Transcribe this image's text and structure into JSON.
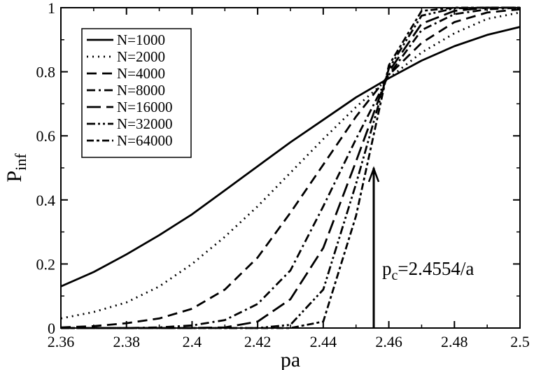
{
  "chart_data": {
    "type": "line",
    "xlabel": "pa",
    "ylabel_main": "P",
    "ylabel_sub": "inf",
    "xlim": [
      2.36,
      2.5
    ],
    "ylim": [
      0,
      1
    ],
    "xticks": [
      "2.36",
      "2.38",
      "2.4",
      "2.42",
      "2.44",
      "2.46",
      "2.48",
      "2.5"
    ],
    "yticks": [
      "0",
      "0.2",
      "0.4",
      "0.6",
      "0.8",
      "1"
    ],
    "grid": false,
    "legend_position": "top-left",
    "series": [
      {
        "name": "N=1000",
        "dash": "solid",
        "x": [
          2.36,
          2.37,
          2.38,
          2.39,
          2.4,
          2.41,
          2.42,
          2.43,
          2.44,
          2.45,
          2.46,
          2.47,
          2.48,
          2.49,
          2.5
        ],
        "y": [
          0.13,
          0.175,
          0.23,
          0.29,
          0.355,
          0.43,
          0.505,
          0.58,
          0.65,
          0.72,
          0.78,
          0.835,
          0.88,
          0.915,
          0.94
        ]
      },
      {
        "name": "N=2000",
        "dash": "dot",
        "x": [
          2.36,
          2.37,
          2.38,
          2.39,
          2.4,
          2.41,
          2.42,
          2.43,
          2.44,
          2.45,
          2.46,
          2.47,
          2.48,
          2.49,
          2.5
        ],
        "y": [
          0.03,
          0.05,
          0.08,
          0.13,
          0.2,
          0.285,
          0.38,
          0.485,
          0.59,
          0.69,
          0.78,
          0.86,
          0.92,
          0.965,
          0.985
        ]
      },
      {
        "name": "N=4000",
        "dash": "dash",
        "x": [
          2.36,
          2.37,
          2.38,
          2.39,
          2.4,
          2.41,
          2.42,
          2.43,
          2.44,
          2.45,
          2.46,
          2.47,
          2.48,
          2.49,
          2.5
        ],
        "y": [
          0.002,
          0.006,
          0.015,
          0.03,
          0.06,
          0.12,
          0.22,
          0.36,
          0.51,
          0.66,
          0.79,
          0.89,
          0.955,
          0.985,
          0.995
        ]
      },
      {
        "name": "N=8000",
        "dash": "dashdot",
        "x": [
          2.36,
          2.37,
          2.38,
          2.39,
          2.4,
          2.41,
          2.42,
          2.43,
          2.44,
          2.45,
          2.46,
          2.47,
          2.48,
          2.49,
          2.5
        ],
        "y": [
          0.0,
          0.0,
          0.0,
          0.002,
          0.008,
          0.025,
          0.075,
          0.18,
          0.38,
          0.59,
          0.79,
          0.93,
          0.98,
          0.995,
          1.0
        ]
      },
      {
        "name": "N=16000",
        "dash": "longdash",
        "x": [
          2.36,
          2.38,
          2.4,
          2.41,
          2.42,
          2.43,
          2.44,
          2.45,
          2.46,
          2.47,
          2.48,
          2.49,
          2.5
        ],
        "y": [
          0.0,
          0.0,
          0.0,
          0.002,
          0.02,
          0.09,
          0.25,
          0.52,
          0.8,
          0.95,
          0.99,
          1.0,
          1.0
        ]
      },
      {
        "name": "N=32000",
        "dash": "dashdotdot",
        "x": [
          2.36,
          2.4,
          2.42,
          2.43,
          2.44,
          2.45,
          2.46,
          2.47,
          2.48,
          2.49,
          2.5
        ],
        "y": [
          0.0,
          0.0,
          0.0,
          0.01,
          0.12,
          0.45,
          0.81,
          0.975,
          0.998,
          1.0,
          1.0
        ]
      },
      {
        "name": "N=64000",
        "dash": "dashdotheavy",
        "x": [
          2.36,
          2.42,
          2.43,
          2.44,
          2.45,
          2.46,
          2.47,
          2.48,
          2.49,
          2.5
        ],
        "y": [
          0.0,
          0.0,
          0.0,
          0.02,
          0.35,
          0.82,
          0.99,
          1.0,
          1.0,
          1.0
        ]
      }
    ],
    "annotation": {
      "main": "p",
      "sub": "c",
      "rest": "=2.4554/a",
      "arrow_x": 2.4554,
      "arrow_y_from": 0.0,
      "arrow_y_to": 0.5
    }
  }
}
